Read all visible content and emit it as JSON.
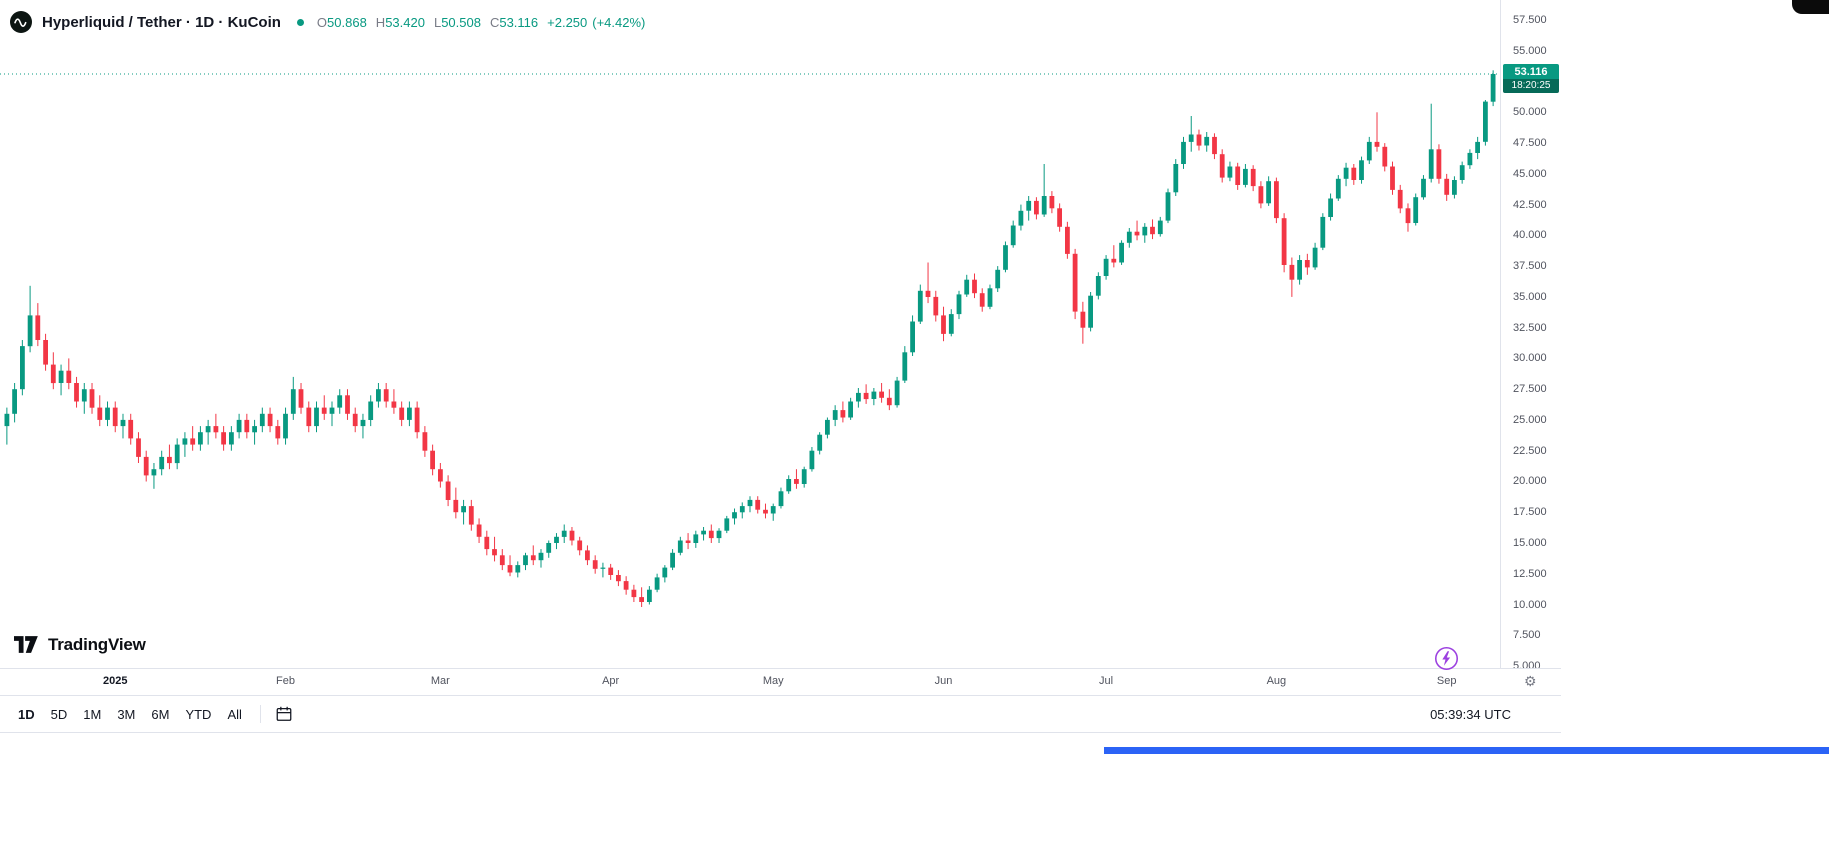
{
  "header": {
    "symbol_title": "Hyperliquid / Tether · 1D · KuCoin",
    "ohlc": {
      "o_label": "O",
      "o_value": "50.868",
      "h_label": "H",
      "h_value": "53.420",
      "l_label": "L",
      "l_value": "50.508",
      "c_label": "C",
      "c_value": "53.116",
      "change": "+2.250",
      "change_pct": "(+4.42%)"
    }
  },
  "price_scale": {
    "badge_price": "53.116",
    "badge_countdown": "18:20:25"
  },
  "toolbar": {
    "ranges": [
      "1D",
      "5D",
      "1M",
      "3M",
      "6M",
      "YTD",
      "All"
    ],
    "active_range": "1D",
    "clock": "05:39:34 UTC"
  },
  "watermark_text": "TradingView",
  "colors": {
    "up": "#089981",
    "down": "#f23645",
    "axis_text": "#50535e",
    "accent_purple": "#9c41e0"
  },
  "chart_data": {
    "type": "candlestick",
    "title": "Hyperliquid / Tether · 1D · KuCoin",
    "symbol": "Hyperliquid / Tether",
    "exchange": "KuCoin",
    "interval": "1D",
    "up_color": "#089981",
    "down_color": "#f23645",
    "current_price": 53.116,
    "last_candle": {
      "open": 50.868,
      "high": 53.42,
      "low": 50.508,
      "close": 53.116,
      "change": 2.25,
      "change_pct": 4.42
    },
    "y_domain": [
      4.84,
      59.13
    ],
    "y_ticks": [
      {
        "label": "57.500",
        "value": 57.5
      },
      {
        "label": "55.000",
        "value": 55.0
      },
      {
        "label": "52.500",
        "value": 52.5
      },
      {
        "label": "50.000",
        "value": 50.0
      },
      {
        "label": "47.500",
        "value": 47.5
      },
      {
        "label": "45.000",
        "value": 45.0
      },
      {
        "label": "42.500",
        "value": 42.5
      },
      {
        "label": "40.000",
        "value": 40.0
      },
      {
        "label": "37.500",
        "value": 37.5
      },
      {
        "label": "35.000",
        "value": 35.0
      },
      {
        "label": "32.500",
        "value": 32.5
      },
      {
        "label": "30.000",
        "value": 30.0
      },
      {
        "label": "27.500",
        "value": 27.5
      },
      {
        "label": "25.000",
        "value": 25.0
      },
      {
        "label": "22.500",
        "value": 22.5
      },
      {
        "label": "20.000",
        "value": 20.0
      },
      {
        "label": "17.500",
        "value": 17.5
      },
      {
        "label": "15.000",
        "value": 15.0
      },
      {
        "label": "12.500",
        "value": 12.5
      },
      {
        "label": "10.000",
        "value": 10.0
      },
      {
        "label": "7.500",
        "value": 7.5
      },
      {
        "label": "5.000",
        "value": 5.0
      }
    ],
    "x_ticks": [
      {
        "label": "2025",
        "index": 14,
        "year": true
      },
      {
        "label": "Feb",
        "index": 36,
        "year": false
      },
      {
        "label": "Mar",
        "index": 56,
        "year": false
      },
      {
        "label": "Apr",
        "index": 78,
        "year": false
      },
      {
        "label": "May",
        "index": 99,
        "year": false
      },
      {
        "label": "Jun",
        "index": 121,
        "year": false
      },
      {
        "label": "Jul",
        "index": 142,
        "year": false
      },
      {
        "label": "Aug",
        "index": 164,
        "year": false
      },
      {
        "label": "Sep",
        "index": 186,
        "year": false
      }
    ],
    "candles": [
      [
        24.5,
        26.0,
        23.0,
        25.5
      ],
      [
        25.5,
        28.0,
        24.8,
        27.5
      ],
      [
        27.5,
        31.5,
        27.0,
        31.0
      ],
      [
        31.0,
        35.9,
        30.5,
        33.5
      ],
      [
        33.5,
        34.5,
        31.0,
        31.5
      ],
      [
        31.5,
        32.0,
        29.0,
        29.5
      ],
      [
        29.5,
        30.5,
        27.5,
        28.0
      ],
      [
        28.0,
        29.5,
        27.0,
        29.0
      ],
      [
        29.0,
        30.0,
        27.5,
        28.0
      ],
      [
        28.0,
        28.5,
        26.0,
        26.5
      ],
      [
        26.5,
        28.0,
        25.5,
        27.5
      ],
      [
        27.5,
        28.0,
        25.5,
        26.0
      ],
      [
        26.0,
        27.0,
        24.5,
        25.0
      ],
      [
        25.0,
        26.5,
        24.5,
        26.0
      ],
      [
        26.0,
        26.5,
        24.0,
        24.5
      ],
      [
        24.5,
        25.5,
        23.5,
        25.0
      ],
      [
        25.0,
        25.5,
        23.0,
        23.5
      ],
      [
        23.5,
        24.0,
        21.5,
        22.0
      ],
      [
        22.0,
        22.5,
        20.0,
        20.5
      ],
      [
        20.5,
        21.5,
        19.4,
        21.0
      ],
      [
        21.0,
        22.5,
        20.5,
        22.0
      ],
      [
        22.0,
        23.0,
        21.0,
        21.5
      ],
      [
        21.5,
        23.5,
        21.0,
        23.0
      ],
      [
        23.0,
        24.0,
        22.0,
        23.5
      ],
      [
        23.5,
        24.5,
        22.5,
        23.0
      ],
      [
        23.0,
        24.5,
        22.5,
        24.0
      ],
      [
        24.0,
        25.0,
        23.0,
        24.5
      ],
      [
        24.5,
        25.5,
        23.5,
        24.0
      ],
      [
        24.0,
        24.5,
        22.5,
        23.0
      ],
      [
        23.0,
        24.5,
        22.5,
        24.0
      ],
      [
        24.0,
        25.5,
        23.5,
        25.0
      ],
      [
        25.0,
        25.5,
        23.5,
        24.0
      ],
      [
        24.0,
        25.0,
        23.0,
        24.5
      ],
      [
        24.5,
        26.0,
        24.0,
        25.5
      ],
      [
        25.5,
        26.0,
        24.0,
        24.5
      ],
      [
        24.5,
        25.0,
        23.0,
        23.5
      ],
      [
        23.5,
        26.0,
        23.0,
        25.5
      ],
      [
        25.5,
        28.5,
        25.0,
        27.5
      ],
      [
        27.5,
        28.0,
        25.5,
        26.0
      ],
      [
        26.0,
        26.5,
        24.0,
        24.5
      ],
      [
        24.5,
        26.5,
        24.0,
        26.0
      ],
      [
        26.0,
        27.0,
        25.0,
        25.5
      ],
      [
        25.5,
        26.5,
        24.5,
        26.0
      ],
      [
        26.0,
        27.5,
        25.5,
        27.0
      ],
      [
        27.0,
        27.5,
        25.0,
        25.5
      ],
      [
        25.5,
        26.0,
        24.0,
        24.5
      ],
      [
        24.5,
        25.5,
        23.5,
        25.0
      ],
      [
        25.0,
        27.0,
        24.5,
        26.5
      ],
      [
        26.5,
        28.0,
        26.0,
        27.5
      ],
      [
        27.5,
        28.0,
        26.0,
        26.5
      ],
      [
        26.5,
        27.5,
        25.5,
        26.0
      ],
      [
        26.0,
        26.5,
        24.5,
        25.0
      ],
      [
        25.0,
        26.5,
        24.5,
        26.0
      ],
      [
        26.0,
        26.5,
        23.5,
        24.0
      ],
      [
        24.0,
        24.5,
        22.0,
        22.5
      ],
      [
        22.5,
        23.0,
        20.5,
        21.0
      ],
      [
        21.0,
        21.5,
        19.5,
        20.0
      ],
      [
        20.0,
        20.5,
        18.0,
        18.5
      ],
      [
        18.5,
        19.5,
        17.0,
        17.5
      ],
      [
        17.5,
        18.5,
        16.5,
        18.0
      ],
      [
        18.0,
        18.5,
        16.0,
        16.5
      ],
      [
        16.5,
        17.0,
        15.0,
        15.5
      ],
      [
        15.5,
        16.0,
        14.0,
        14.5
      ],
      [
        14.5,
        15.5,
        13.5,
        14.0
      ],
      [
        14.0,
        14.5,
        12.8,
        13.2
      ],
      [
        13.2,
        14.0,
        12.3,
        12.6
      ],
      [
        12.6,
        13.5,
        12.2,
        13.2
      ],
      [
        13.2,
        14.2,
        12.8,
        14.0
      ],
      [
        14.0,
        14.8,
        13.2,
        13.6
      ],
      [
        13.6,
        14.5,
        13.0,
        14.2
      ],
      [
        14.2,
        15.2,
        13.8,
        15.0
      ],
      [
        15.0,
        15.8,
        14.5,
        15.5
      ],
      [
        15.5,
        16.5,
        15.0,
        16.0
      ],
      [
        16.0,
        16.3,
        14.8,
        15.2
      ],
      [
        15.2,
        15.5,
        14.0,
        14.4
      ],
      [
        14.4,
        14.8,
        13.2,
        13.6
      ],
      [
        13.6,
        14.0,
        12.5,
        12.9
      ],
      [
        12.9,
        13.4,
        12.2,
        13.0
      ],
      [
        13.0,
        13.3,
        12.0,
        12.4
      ],
      [
        12.4,
        12.8,
        11.5,
        11.9
      ],
      [
        11.9,
        12.3,
        10.8,
        11.2
      ],
      [
        11.2,
        11.6,
        10.2,
        10.6
      ],
      [
        10.6,
        11.4,
        9.8,
        10.2
      ],
      [
        10.2,
        11.5,
        10.0,
        11.2
      ],
      [
        11.2,
        12.5,
        11.0,
        12.2
      ],
      [
        12.2,
        13.2,
        11.8,
        13.0
      ],
      [
        13.0,
        14.5,
        12.8,
        14.2
      ],
      [
        14.2,
        15.5,
        14.0,
        15.2
      ],
      [
        15.2,
        15.8,
        14.5,
        15.0
      ],
      [
        15.0,
        16.0,
        14.6,
        15.7
      ],
      [
        15.7,
        16.3,
        15.2,
        16.0
      ],
      [
        16.0,
        16.5,
        15.0,
        15.4
      ],
      [
        15.4,
        16.2,
        15.0,
        16.0
      ],
      [
        16.0,
        17.2,
        15.8,
        17.0
      ],
      [
        17.0,
        17.8,
        16.5,
        17.5
      ],
      [
        17.5,
        18.3,
        17.0,
        18.0
      ],
      [
        18.0,
        18.8,
        17.5,
        18.5
      ],
      [
        18.5,
        18.8,
        17.4,
        17.7
      ],
      [
        17.7,
        18.2,
        17.0,
        17.4
      ],
      [
        17.4,
        18.2,
        16.8,
        18.0
      ],
      [
        18.0,
        19.5,
        17.8,
        19.2
      ],
      [
        19.2,
        20.5,
        19.0,
        20.2
      ],
      [
        20.2,
        21.0,
        19.4,
        19.8
      ],
      [
        19.8,
        21.2,
        19.5,
        21.0
      ],
      [
        21.0,
        22.8,
        20.8,
        22.5
      ],
      [
        22.5,
        24.0,
        22.2,
        23.8
      ],
      [
        23.8,
        25.2,
        23.5,
        25.0
      ],
      [
        25.0,
        26.2,
        24.5,
        25.8
      ],
      [
        25.8,
        26.5,
        24.8,
        25.2
      ],
      [
        25.2,
        26.8,
        25.0,
        26.5
      ],
      [
        26.5,
        27.6,
        26.0,
        27.2
      ],
      [
        27.2,
        27.9,
        26.3,
        26.7
      ],
      [
        26.7,
        27.6,
        26.2,
        27.3
      ],
      [
        27.3,
        28.0,
        26.4,
        26.8
      ],
      [
        26.8,
        27.5,
        25.8,
        26.2
      ],
      [
        26.2,
        28.5,
        26.0,
        28.2
      ],
      [
        28.2,
        31.0,
        28.0,
        30.5
      ],
      [
        30.5,
        33.5,
        30.2,
        33.0
      ],
      [
        33.0,
        36.0,
        32.8,
        35.5
      ],
      [
        35.5,
        37.8,
        34.5,
        35.0
      ],
      [
        35.0,
        35.5,
        33.0,
        33.5
      ],
      [
        33.5,
        34.2,
        31.4,
        32.0
      ],
      [
        32.0,
        34.0,
        31.8,
        33.6
      ],
      [
        33.6,
        35.5,
        33.2,
        35.2
      ],
      [
        35.2,
        36.8,
        35.0,
        36.4
      ],
      [
        36.4,
        36.9,
        34.9,
        35.3
      ],
      [
        35.3,
        35.7,
        33.8,
        34.2
      ],
      [
        34.2,
        36.0,
        34.0,
        35.7
      ],
      [
        35.7,
        37.5,
        35.4,
        37.2
      ],
      [
        37.2,
        39.5,
        37.0,
        39.2
      ],
      [
        39.2,
        41.2,
        39.0,
        40.8
      ],
      [
        40.8,
        42.5,
        40.4,
        42.0
      ],
      [
        42.0,
        43.2,
        41.2,
        42.8
      ],
      [
        42.8,
        43.1,
        41.3,
        41.7
      ],
      [
        41.7,
        45.8,
        41.5,
        43.2
      ],
      [
        43.2,
        43.6,
        41.8,
        42.2
      ],
      [
        42.2,
        42.6,
        40.3,
        40.7
      ],
      [
        40.7,
        41.1,
        38.1,
        38.5
      ],
      [
        38.5,
        38.9,
        33.2,
        33.8
      ],
      [
        33.8,
        34.6,
        31.2,
        32.5
      ],
      [
        32.5,
        35.4,
        32.2,
        35.1
      ],
      [
        35.1,
        37.0,
        34.8,
        36.7
      ],
      [
        36.7,
        38.4,
        36.4,
        38.1
      ],
      [
        38.1,
        39.2,
        37.4,
        37.8
      ],
      [
        37.8,
        39.6,
        37.6,
        39.4
      ],
      [
        39.4,
        40.6,
        39.0,
        40.3
      ],
      [
        40.3,
        41.2,
        39.6,
        40.0
      ],
      [
        40.0,
        41.0,
        39.4,
        40.7
      ],
      [
        40.7,
        41.3,
        39.7,
        40.1
      ],
      [
        40.1,
        41.5,
        39.9,
        41.2
      ],
      [
        41.2,
        43.8,
        41.0,
        43.5
      ],
      [
        43.5,
        46.2,
        43.2,
        45.8
      ],
      [
        45.8,
        48.0,
        45.4,
        47.6
      ],
      [
        47.6,
        49.7,
        46.8,
        48.2
      ],
      [
        48.2,
        48.6,
        46.9,
        47.3
      ],
      [
        47.3,
        48.4,
        46.8,
        48.0
      ],
      [
        48.0,
        48.3,
        46.2,
        46.6
      ],
      [
        46.6,
        47.0,
        44.3,
        44.7
      ],
      [
        44.7,
        46.0,
        44.4,
        45.6
      ],
      [
        45.6,
        45.9,
        43.7,
        44.1
      ],
      [
        44.1,
        45.8,
        43.9,
        45.4
      ],
      [
        45.4,
        45.7,
        43.6,
        44.0
      ],
      [
        44.0,
        44.4,
        42.2,
        42.6
      ],
      [
        42.6,
        44.8,
        42.4,
        44.4
      ],
      [
        44.4,
        44.7,
        41.0,
        41.4
      ],
      [
        41.4,
        41.8,
        37.0,
        37.6
      ],
      [
        37.6,
        38.2,
        35.0,
        36.4
      ],
      [
        36.4,
        38.4,
        36.0,
        38.0
      ],
      [
        38.0,
        38.5,
        36.8,
        37.4
      ],
      [
        37.4,
        39.4,
        37.2,
        39.0
      ],
      [
        39.0,
        41.8,
        38.8,
        41.5
      ],
      [
        41.5,
        43.4,
        41.2,
        43.0
      ],
      [
        43.0,
        44.9,
        42.8,
        44.6
      ],
      [
        44.6,
        45.9,
        44.0,
        45.5
      ],
      [
        45.5,
        45.8,
        44.1,
        44.5
      ],
      [
        44.5,
        46.4,
        44.2,
        46.1
      ],
      [
        46.1,
        48.0,
        45.8,
        47.6
      ],
      [
        47.6,
        50.0,
        46.8,
        47.2
      ],
      [
        47.2,
        47.5,
        45.2,
        45.6
      ],
      [
        45.6,
        46.0,
        43.3,
        43.7
      ],
      [
        43.7,
        44.1,
        41.8,
        42.2
      ],
      [
        42.2,
        42.6,
        40.3,
        41.0
      ],
      [
        41.0,
        43.4,
        40.8,
        43.1
      ],
      [
        43.1,
        44.9,
        42.9,
        44.6
      ],
      [
        44.6,
        50.7,
        44.3,
        47.0
      ],
      [
        47.0,
        47.4,
        44.2,
        44.6
      ],
      [
        44.6,
        45.0,
        42.8,
        43.3
      ],
      [
        43.3,
        44.8,
        43.0,
        44.5
      ],
      [
        44.5,
        46.0,
        44.2,
        45.7
      ],
      [
        45.7,
        47.0,
        45.4,
        46.7
      ],
      [
        46.7,
        48.0,
        46.2,
        47.6
      ],
      [
        47.6,
        51.0,
        47.3,
        50.87
      ],
      [
        50.868,
        53.42,
        50.508,
        53.116
      ]
    ]
  }
}
